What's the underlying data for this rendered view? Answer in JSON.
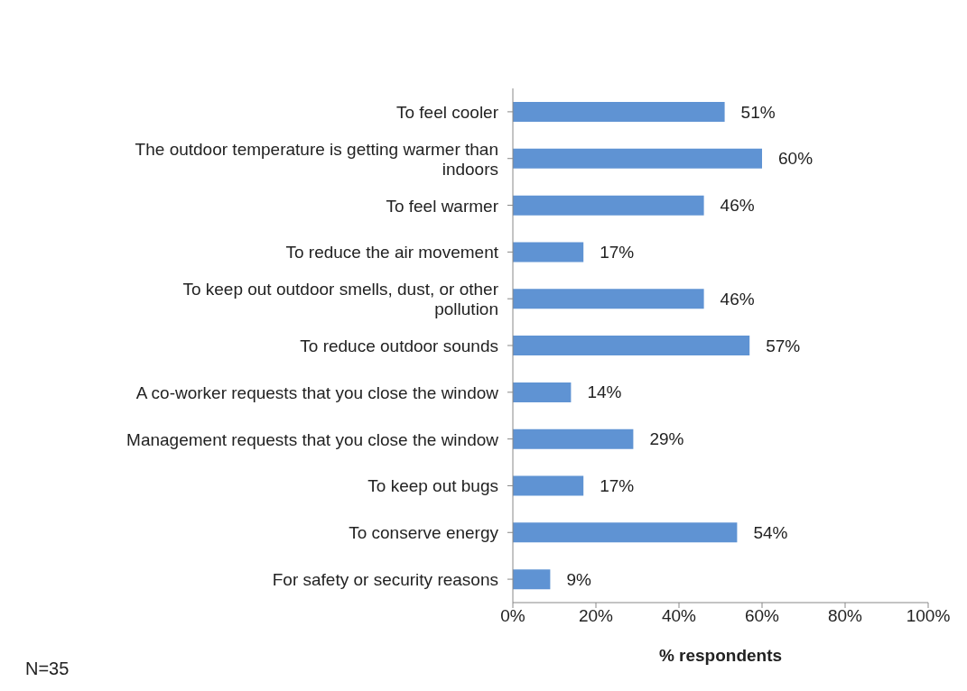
{
  "chart_data": {
    "type": "bar",
    "orientation": "horizontal",
    "categories": [
      "To feel cooler",
      "The outdoor temperature is getting warmer than indoors",
      "To feel warmer",
      "To reduce the air movement",
      "To keep out outdoor smells, dust, or other pollution",
      "To reduce outdoor sounds",
      "A co-worker requests that you close the window",
      "Management requests that you close the window",
      "To keep out bugs",
      "To conserve energy",
      "For safety or security reasons"
    ],
    "values": [
      51,
      60,
      46,
      17,
      46,
      57,
      14,
      29,
      17,
      54,
      9
    ],
    "value_labels": [
      "51%",
      "60%",
      "46%",
      "17%",
      "46%",
      "57%",
      "14%",
      "29%",
      "17%",
      "54%",
      "9%"
    ],
    "color": "#5f93d3",
    "xlim": [
      0,
      100
    ],
    "xticks": [
      {
        "value": 0,
        "label": "0%"
      },
      {
        "value": 20,
        "label": "20%"
      },
      {
        "value": 40,
        "label": "40%"
      },
      {
        "value": 60,
        "label": "60%"
      },
      {
        "value": 80,
        "label": "80%"
      },
      {
        "value": 100,
        "label": "100%"
      }
    ],
    "xlabel": "% respondents",
    "annotations": [
      "N=35"
    ],
    "grid": false,
    "legend": false
  }
}
